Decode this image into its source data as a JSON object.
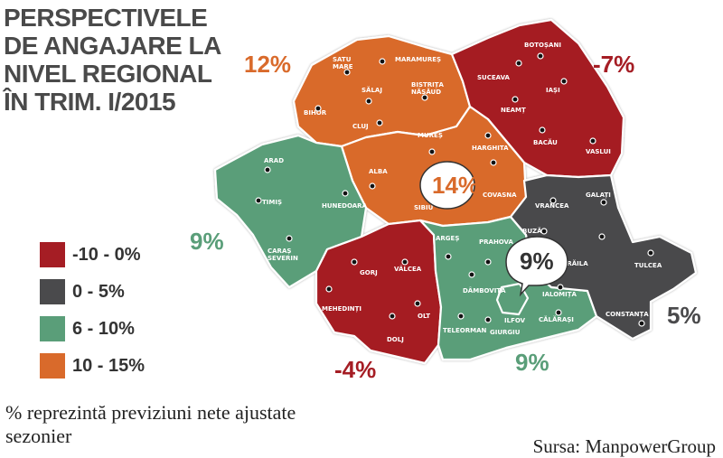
{
  "title_lines": [
    "PERSPECTIVELE",
    "DE ANGAJARE LA",
    "NIVEL REGIONAL",
    "ÎN TRIM. I/2015"
  ],
  "colors": {
    "red": "#a51d24",
    "gray": "#4a4a4c",
    "green": "#5a9e79",
    "orange": "#d96a2b",
    "title": "#4a4a4a"
  },
  "legend": [
    {
      "label": "-10 - 0%",
      "color": "#a51d24"
    },
    {
      "label": "0 - 5%",
      "color": "#4a4a4c"
    },
    {
      "label": "6 - 10%",
      "color": "#5a9e79"
    },
    {
      "label": "10 - 15%",
      "color": "#d96a2b"
    }
  ],
  "region_values": {
    "nord_vest": "12%",
    "nord_est": "-7%",
    "centru": "14%",
    "vest": "9%",
    "bucuresti": "9%",
    "sud_est": "5%",
    "sud_vest": "-4%",
    "sud": "9%"
  },
  "counties": {
    "satu_mare": "SATU\nMARE",
    "maramures": "MARAMUREȘ",
    "bistrita": "BISTRIȚA\nNĂSĂUD",
    "salaj": "SĂLAJ",
    "bihor": "BIHOR",
    "cluj": "CLUJ",
    "botosani": "BOTOȘANI",
    "suceava": "SUCEAVA",
    "iasi": "IAȘI",
    "neamt": "NEAMȚ",
    "bacau": "BACĂU",
    "vaslui": "VASLUI",
    "mures": "MUREȘ",
    "harghita": "HARGHITA",
    "alba": "ALBA",
    "sibiu": "SIBIU",
    "covasna": "COVASNA",
    "arad": "ARAD",
    "timis": "TIMIȘ",
    "hunedoara": "HUNEDOARA",
    "caras": "CARAȘ\nSEVERIN",
    "vrancea": "VRANCEA",
    "galati": "GALAȚI",
    "buzau": "BUZĂU",
    "braila": "BRĂILA",
    "tulcea": "TULCEA",
    "constanta": "CONSTANȚA",
    "arges": "ARGEȘ",
    "prahova": "PRAHOVA",
    "dambovita": "DÂMBOVIȚA",
    "ilfov": "ILFOV",
    "ialomita": "IALOMIȚA",
    "calarasi": "CĂLĂRAȘI",
    "teleorman": "TELEORMAN",
    "giurgiu": "GIURGIU",
    "gorj": "GORJ",
    "valcea": "VÂLCEA",
    "mehedinti": "MEHEDINȚI",
    "olt": "OLT",
    "dolj": "DOLJ"
  },
  "note": "% reprezintă previziuni nete ajustate sezonier",
  "source": "Sursa: ManpowerGroup"
}
